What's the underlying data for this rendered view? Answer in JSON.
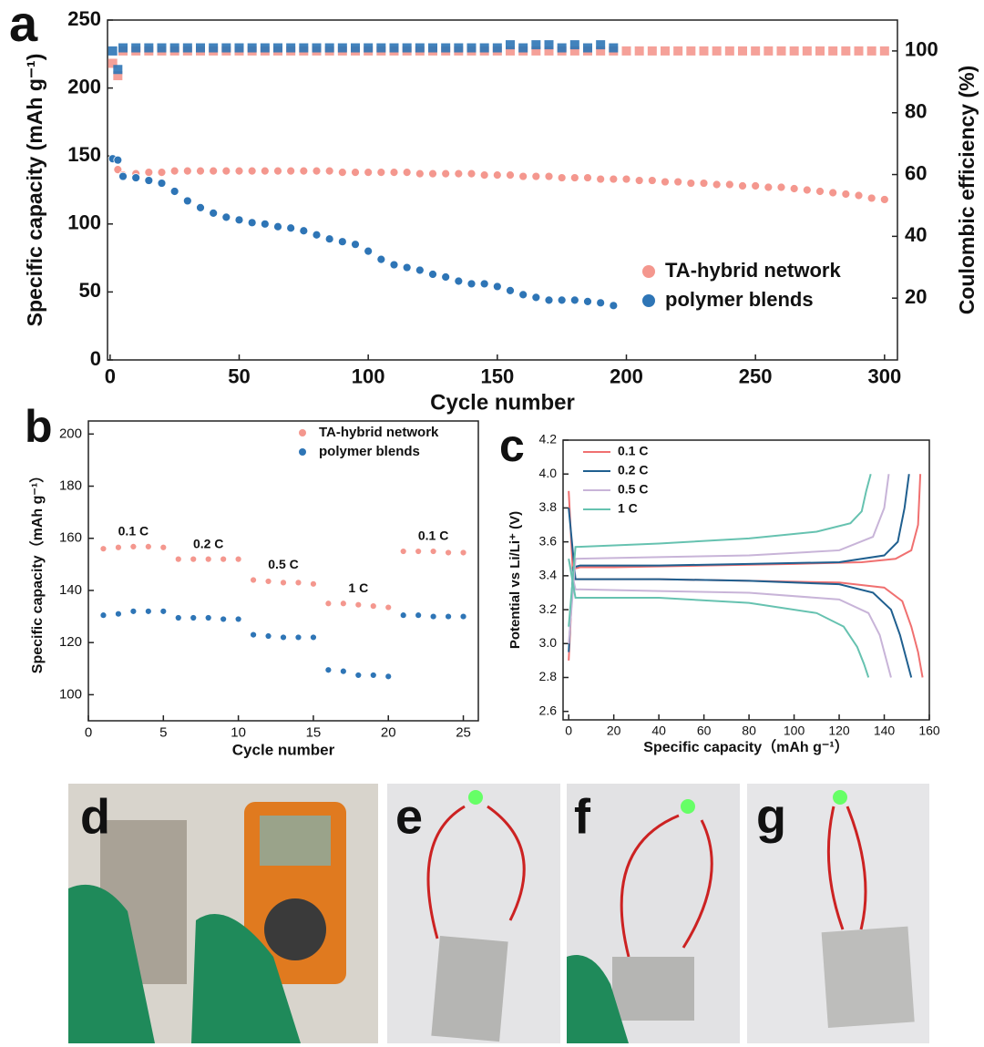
{
  "chart_data": [
    {
      "type": "scatter",
      "panel": "a",
      "x_label": "Cycle number",
      "y_label": "Specific capacity (mAh g⁻¹)",
      "y2_label": "Coulombic efficiency (%)",
      "xlim": [
        -1,
        305
      ],
      "xticks": [
        0,
        50,
        100,
        150,
        200,
        250,
        300
      ],
      "ylim": [
        0,
        250
      ],
      "yticks": [
        0,
        50,
        100,
        150,
        200,
        250
      ],
      "y2lim": [
        0,
        110
      ],
      "y2ticks": [
        20,
        40,
        60,
        80,
        100
      ],
      "legend": "lower right",
      "series": [
        {
          "name": "TA-hybrid network",
          "color": "#f4978e",
          "x": [
            1,
            3,
            5,
            10,
            15,
            20,
            25,
            30,
            35,
            40,
            45,
            50,
            55,
            60,
            65,
            70,
            75,
            80,
            85,
            90,
            95,
            100,
            105,
            110,
            115,
            120,
            125,
            130,
            135,
            140,
            145,
            150,
            155,
            160,
            165,
            170,
            175,
            180,
            185,
            190,
            195,
            200,
            205,
            210,
            215,
            220,
            225,
            230,
            235,
            240,
            245,
            250,
            255,
            260,
            265,
            270,
            275,
            280,
            285,
            290,
            295,
            300
          ],
          "values": [
            148,
            140,
            136,
            137,
            138,
            138,
            139,
            139,
            139,
            139,
            139,
            139,
            139,
            139,
            139,
            139,
            139,
            139,
            139,
            138,
            138,
            138,
            138,
            138,
            138,
            137,
            137,
            137,
            137,
            137,
            136,
            136,
            136,
            135,
            135,
            135,
            134,
            134,
            134,
            133,
            133,
            133,
            132,
            132,
            131,
            131,
            130,
            130,
            129,
            129,
            128,
            128,
            127,
            127,
            126,
            125,
            124,
            123,
            122,
            121,
            119,
            118
          ],
          "y2_values": [
            96,
            92,
            100,
            100,
            100,
            100,
            100,
            100,
            100,
            100,
            100,
            100,
            100,
            100,
            100,
            100,
            100,
            100,
            100,
            100,
            100,
            100,
            100,
            100,
            100,
            100,
            100,
            100,
            100,
            100,
            100,
            100,
            100,
            100,
            100,
            100,
            100,
            100,
            100,
            100,
            100,
            100,
            100,
            100,
            100,
            100,
            100,
            100,
            100,
            100,
            100,
            100,
            100,
            100,
            100,
            100,
            100,
            100,
            100,
            100,
            100,
            100
          ]
        },
        {
          "name": "polymer blends",
          "color": "#2e75b6",
          "x": [
            1,
            3,
            5,
            10,
            15,
            20,
            25,
            30,
            35,
            40,
            45,
            50,
            55,
            60,
            65,
            70,
            75,
            80,
            85,
            90,
            95,
            100,
            105,
            110,
            115,
            120,
            125,
            130,
            135,
            140,
            145,
            150,
            155,
            160,
            165,
            170,
            175,
            180,
            185,
            190,
            195
          ],
          "values": [
            148,
            147,
            135,
            134,
            132,
            130,
            124,
            117,
            112,
            108,
            105,
            103,
            101,
            100,
            98,
            97,
            95,
            92,
            89,
            87,
            85,
            80,
            74,
            70,
            68,
            66,
            63,
            61,
            58,
            56,
            56,
            54,
            51,
            48,
            46,
            44,
            44,
            44,
            43,
            42,
            40
          ],
          "y2_values": [
            100,
            94,
            101,
            101,
            101,
            101,
            101,
            101,
            101,
            101,
            101,
            101,
            101,
            101,
            101,
            101,
            101,
            101,
            101,
            101,
            101,
            101,
            101,
            101,
            101,
            101,
            101,
            101,
            101,
            101,
            101,
            101,
            102,
            101,
            102,
            102,
            101,
            102,
            101,
            102,
            101
          ]
        }
      ]
    },
    {
      "type": "scatter",
      "panel": "b",
      "x_label": "Cycle number",
      "y_label": "Specific capacity（mAh g⁻¹）",
      "xlim": [
        0,
        26
      ],
      "xticks": [
        0,
        5,
        10,
        15,
        20,
        25
      ],
      "ylim": [
        90,
        205
      ],
      "yticks": [
        100,
        120,
        140,
        160,
        180,
        200
      ],
      "legend": "upper right",
      "annotations": [
        "0.1 C",
        "0.2 C",
        "0.5 C",
        "1 C",
        "0.1 C"
      ],
      "x": [
        1,
        2,
        3,
        4,
        5,
        6,
        7,
        8,
        9,
        10,
        11,
        12,
        13,
        14,
        15,
        16,
        17,
        18,
        19,
        20,
        21,
        22,
        23,
        24,
        25
      ],
      "series": [
        {
          "name": "TA-hybrid network",
          "color": "#f4978e",
          "values": [
            156,
            156.5,
            156.8,
            156.8,
            156.5,
            152,
            152,
            152,
            152,
            152,
            144,
            143.5,
            143,
            143,
            142.5,
            135,
            135,
            134.5,
            134,
            133.5,
            155,
            155,
            155,
            154.5,
            154.5
          ]
        },
        {
          "name": "polymer blends",
          "color": "#2e75b6",
          "values": [
            130.5,
            131,
            132,
            132,
            132,
            129.5,
            129.5,
            129.5,
            129,
            129,
            123,
            122.5,
            122,
            122,
            122,
            109.5,
            109,
            107.5,
            107.5,
            107,
            130.5,
            130.5,
            130,
            130,
            130
          ]
        }
      ]
    },
    {
      "type": "line",
      "panel": "c",
      "x_label": "Specific capacity（mAh g⁻¹）",
      "y_label": "Potential vs Li/Li⁺ (V)",
      "xlim": [
        -2.5,
        160
      ],
      "xticks": [
        0,
        20,
        40,
        60,
        80,
        100,
        120,
        140,
        160
      ],
      "ylim": [
        2.55,
        4.2
      ],
      "yticks": [
        2.6,
        2.8,
        {
          "value": 3,
          "label": "3.0"
        },
        3.2,
        3.4,
        3.6,
        3.8,
        {
          "value": 4,
          "label": "4.0"
        },
        4.2
      ],
      "legend": "upper left",
      "series": [
        {
          "name": "0.1 C",
          "color": "#f07070",
          "charge_x": [
            0,
            2,
            5,
            20,
            60,
            100,
            130,
            145,
            152,
            155,
            156
          ],
          "charge_values": [
            2.9,
            3.44,
            3.45,
            3.45,
            3.46,
            3.47,
            3.48,
            3.5,
            3.55,
            3.7,
            4.0
          ],
          "discharge_x": [
            0,
            2,
            5,
            40,
            80,
            120,
            140,
            148,
            152,
            155,
            157
          ],
          "discharge_values": [
            3.9,
            3.38,
            3.38,
            3.38,
            3.37,
            3.36,
            3.33,
            3.25,
            3.1,
            2.95,
            2.8
          ]
        },
        {
          "name": "0.2 C",
          "color": "#1f5f8f",
          "charge_x": [
            0,
            2,
            5,
            40,
            80,
            120,
            140,
            146,
            149,
            151
          ],
          "charge_values": [
            2.95,
            3.45,
            3.46,
            3.46,
            3.47,
            3.48,
            3.52,
            3.6,
            3.8,
            4.0
          ],
          "discharge_x": [
            0,
            3,
            40,
            80,
            120,
            135,
            143,
            147,
            150,
            152
          ],
          "discharge_values": [
            3.8,
            3.38,
            3.38,
            3.37,
            3.35,
            3.3,
            3.2,
            3.05,
            2.9,
            2.8
          ]
        },
        {
          "name": "0.5 C",
          "color": "#c8b4d8",
          "charge_x": [
            0,
            3,
            40,
            80,
            120,
            135,
            140,
            142
          ],
          "charge_values": [
            3.0,
            3.5,
            3.51,
            3.52,
            3.55,
            3.63,
            3.8,
            4.0
          ],
          "discharge_x": [
            0,
            3,
            40,
            80,
            120,
            133,
            138,
            141,
            143
          ],
          "discharge_values": [
            3.5,
            3.32,
            3.31,
            3.3,
            3.26,
            3.18,
            3.05,
            2.9,
            2.8
          ]
        },
        {
          "name": "1 C",
          "color": "#66c2b0",
          "charge_x": [
            0,
            3,
            40,
            80,
            110,
            125,
            130,
            132,
            134
          ],
          "charge_values": [
            3.1,
            3.57,
            3.59,
            3.62,
            3.66,
            3.71,
            3.78,
            3.9,
            4.0
          ],
          "discharge_x": [
            0,
            3,
            40,
            80,
            110,
            122,
            128,
            131,
            133
          ],
          "discharge_values": [
            3.5,
            3.27,
            3.27,
            3.24,
            3.18,
            3.1,
            2.98,
            2.88,
            2.8
          ]
        }
      ]
    }
  ],
  "photos": [
    {
      "label": "d"
    },
    {
      "label": "e"
    },
    {
      "label": "f"
    },
    {
      "label": "g"
    }
  ]
}
